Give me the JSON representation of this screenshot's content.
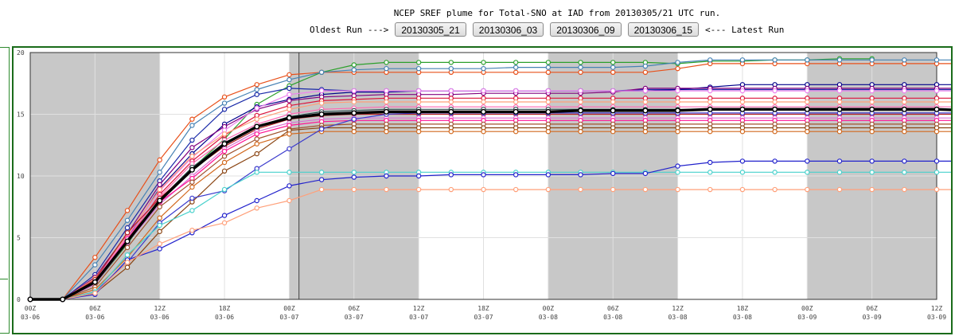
{
  "header": {
    "title": "NCEP SREF plume for Total-SNO at IAD from 20130305/21 UTC run.",
    "oldest_label": "Oldest Run --->",
    "latest_label": "<--- Latest Run",
    "runs": [
      "20130305_21",
      "20130306_03",
      "20130306_09",
      "20130306_15"
    ]
  },
  "colors": {
    "frame": "#1a6b1a",
    "night": "#c8c8c8",
    "mean": "#000000"
  },
  "chart_data": {
    "type": "line",
    "title": "",
    "xlabel": "",
    "ylabel": "",
    "ylim": [
      0,
      20
    ],
    "yticks": [
      0,
      5,
      10,
      15,
      20
    ],
    "grid": true,
    "x": [
      0,
      3,
      6,
      9,
      12,
      15,
      18,
      21,
      24,
      27,
      30,
      33,
      36,
      39,
      42,
      45,
      48,
      51,
      54,
      57,
      60,
      63,
      66,
      69,
      72,
      75,
      78,
      81,
      84,
      87
    ],
    "xticks": [
      {
        "hour": 0,
        "l1": "00Z",
        "l2": "03-06"
      },
      {
        "hour": 6,
        "l1": "06Z",
        "l2": "03-06"
      },
      {
        "hour": 12,
        "l1": "12Z",
        "l2": "03-06"
      },
      {
        "hour": 18,
        "l1": "18Z",
        "l2": "03-06"
      },
      {
        "hour": 24,
        "l1": "00Z",
        "l2": "03-07"
      },
      {
        "hour": 30,
        "l1": "06Z",
        "l2": "03-07"
      },
      {
        "hour": 36,
        "l1": "12Z",
        "l2": "03-07"
      },
      {
        "hour": 42,
        "l1": "18Z",
        "l2": "03-07"
      },
      {
        "hour": 48,
        "l1": "00Z",
        "l2": "03-08"
      },
      {
        "hour": 54,
        "l1": "06Z",
        "l2": "03-08"
      },
      {
        "hour": 60,
        "l1": "12Z",
        "l2": "03-08"
      },
      {
        "hour": 66,
        "l1": "18Z",
        "l2": "03-08"
      },
      {
        "hour": 72,
        "l1": "00Z",
        "l2": "03-09"
      },
      {
        "hour": 78,
        "l1": "06Z",
        "l2": "03-09"
      },
      {
        "hour": 84,
        "l1": "12Z",
        "l2": "03-09"
      }
    ],
    "shaded_hours": [
      [
        0,
        12
      ],
      [
        24,
        36
      ],
      [
        48,
        60
      ],
      [
        72,
        84
      ]
    ],
    "run_marker_hour": 24.9,
    "series": [
      {
        "color": "#2ca02c",
        "values": [
          0,
          0,
          1.2,
          4.5,
          8,
          10.6,
          13,
          15.8,
          17.3,
          18.4,
          19.0,
          19.2,
          19.2,
          19.2,
          19.2,
          19.2,
          19.2,
          19.2,
          19.2,
          19.2,
          19.1,
          19.3,
          19.3,
          19.4,
          19.4,
          19.5,
          19.5,
          null,
          null,
          null
        ]
      },
      {
        "color": "#e8501a",
        "values": [
          0,
          0,
          3.4,
          7.2,
          11.3,
          14.6,
          16.4,
          17.4,
          18.2,
          18.4,
          18.4,
          18.4,
          18.4,
          18.4,
          18.4,
          18.4,
          18.4,
          18.4,
          18.4,
          18.4,
          18.7,
          19.1,
          19.1,
          19.1,
          19.1,
          19.1,
          19.1,
          19.1,
          19.1,
          19.1
        ]
      },
      {
        "color": "#4682b4",
        "values": [
          0,
          0,
          2.8,
          6.4,
          10.3,
          14.1,
          15.9,
          17.0,
          17.8,
          18.4,
          18.6,
          18.7,
          18.7,
          18.7,
          18.7,
          18.8,
          18.8,
          18.8,
          18.8,
          18.9,
          19.2,
          19.4,
          19.4,
          19.4,
          19.4,
          19.4,
          19.4,
          19.4,
          19.4,
          19.4
        ]
      },
      {
        "color": "#1a2aa8",
        "values": [
          0,
          0,
          2.0,
          5.8,
          9.6,
          12.9,
          15.4,
          16.6,
          17.1,
          17.0,
          16.9,
          16.9,
          16.9,
          16.9,
          16.9,
          16.9,
          16.9,
          16.9,
          16.9,
          17.0,
          17.0,
          17.0,
          17.0,
          17.0,
          17.0,
          17.0,
          17.0,
          17.0,
          17.0,
          17.0
        ]
      },
      {
        "color": "#00008b",
        "values": [
          0,
          0,
          1.5,
          5.0,
          9.0,
          11.8,
          14.2,
          15.6,
          16.2,
          16.6,
          16.8,
          16.8,
          16.9,
          16.9,
          16.9,
          16.9,
          16.9,
          16.9,
          16.9,
          16.9,
          17.0,
          17.2,
          17.4,
          17.4,
          17.4,
          17.4,
          17.4,
          17.4,
          17.4,
          17.4
        ]
      },
      {
        "color": "#800080",
        "values": [
          0,
          0,
          1.8,
          5.3,
          9.3,
          12.3,
          14.0,
          15.4,
          16.1,
          16.4,
          16.5,
          16.6,
          16.6,
          16.6,
          16.7,
          16.7,
          16.7,
          16.7,
          16.8,
          17.1,
          17.1,
          17.1,
          17.1,
          17.1,
          17.1,
          17.1,
          17.1,
          17.1,
          17.1,
          17.1
        ]
      },
      {
        "color": "#ee82ee",
        "values": [
          0,
          0,
          1.6,
          5.1,
          8.8,
          11.5,
          13.7,
          15.5,
          16.6,
          16.9,
          16.9,
          16.9,
          16.9,
          16.9,
          16.9,
          16.9,
          16.9,
          16.9,
          16.9,
          16.9,
          16.9,
          16.9,
          16.9,
          16.9,
          16.9,
          16.9,
          16.9,
          16.9,
          16.9,
          16.9
        ]
      },
      {
        "color": "#dc143c",
        "values": [
          0,
          0,
          1.4,
          4.8,
          8.5,
          11.2,
          13.3,
          14.9,
          15.7,
          16.1,
          16.2,
          16.3,
          16.3,
          16.3,
          16.3,
          16.3,
          16.3,
          16.3,
          16.3,
          16.3,
          16.3,
          16.3,
          16.3,
          16.3,
          16.3,
          16.3,
          16.3,
          16.3,
          16.3,
          16.3
        ]
      },
      {
        "color": "#ffa07a",
        "values": [
          0,
          0,
          1.7,
          5.2,
          8.9,
          11.6,
          13.4,
          14.6,
          15.4,
          15.9,
          16.0,
          16.0,
          16.0,
          16.0,
          16.0,
          16.0,
          16.0,
          16.0,
          16.0,
          16.0,
          16.0,
          16.0,
          16.0,
          16.0,
          16.0,
          16.0,
          16.0,
          16.0,
          16.0,
          16.0
        ]
      },
      {
        "color": "#ff69b4",
        "values": [
          0,
          0,
          1.5,
          5.0,
          8.3,
          11.0,
          12.9,
          14.2,
          15.0,
          15.4,
          15.5,
          15.6,
          15.6,
          15.6,
          15.6,
          15.6,
          15.6,
          15.6,
          15.6,
          15.6,
          15.6,
          15.6,
          15.6,
          15.6,
          15.6,
          15.6,
          15.6,
          15.6,
          15.6,
          15.6
        ]
      },
      {
        "color": "#2f4f4f",
        "values": [
          0,
          0,
          1.3,
          4.7,
          8.1,
          10.7,
          12.7,
          14.0,
          14.8,
          15.2,
          15.3,
          15.4,
          15.4,
          15.4,
          15.4,
          15.4,
          15.4,
          15.4,
          15.4,
          15.4,
          15.4,
          15.4,
          15.4,
          15.4,
          15.4,
          15.4,
          15.4,
          15.4,
          15.4,
          15.4
        ]
      },
      {
        "color": "#b22222",
        "values": [
          0,
          0,
          1.6,
          5.4,
          8.2,
          10.5,
          12.4,
          13.8,
          14.6,
          14.9,
          15.0,
          15.0,
          15.0,
          15.0,
          15.0,
          15.0,
          15.0,
          15.0,
          15.0,
          15.0,
          15.0,
          15.0,
          15.0,
          15.0,
          15.0,
          15.0,
          15.0,
          15.0,
          15.0,
          15.0
        ]
      },
      {
        "color": "#da70d6",
        "values": [
          0,
          0,
          1.2,
          4.6,
          7.7,
          10.0,
          12.2,
          13.6,
          14.3,
          14.6,
          14.7,
          14.7,
          14.7,
          14.7,
          14.7,
          14.7,
          14.7,
          14.7,
          14.7,
          14.7,
          14.7,
          14.7,
          14.7,
          14.7,
          14.7,
          14.7,
          14.7,
          14.7,
          14.7,
          14.7
        ]
      },
      {
        "color": "#ff1493",
        "values": [
          0,
          0,
          1.4,
          4.9,
          7.9,
          9.8,
          12.0,
          13.4,
          14.1,
          14.4,
          14.5,
          14.5,
          14.5,
          14.5,
          14.5,
          14.5,
          14.5,
          14.5,
          14.5,
          14.5,
          14.5,
          14.5,
          14.5,
          14.5,
          14.5,
          14.5,
          14.5,
          14.5,
          14.5,
          14.5
        ]
      },
      {
        "color": "#a0522d",
        "values": [
          0,
          0,
          1.0,
          4.2,
          7.5,
          9.5,
          11.6,
          13.0,
          13.8,
          14.1,
          14.2,
          14.2,
          14.2,
          14.2,
          14.2,
          14.2,
          14.2,
          14.2,
          14.2,
          14.2,
          14.2,
          14.2,
          14.2,
          14.2,
          14.2,
          14.2,
          14.2,
          14.2,
          14.2,
          14.2
        ]
      },
      {
        "color": "#8b4513",
        "values": [
          0,
          0,
          0.5,
          2.6,
          5.5,
          7.9,
          10.4,
          11.8,
          13.7,
          13.9,
          13.9,
          13.9,
          13.9,
          13.9,
          13.9,
          13.9,
          13.9,
          13.9,
          13.9,
          13.9,
          13.9,
          13.9,
          13.9,
          13.9,
          13.9,
          13.9,
          13.9,
          13.9,
          13.9,
          13.9
        ]
      },
      {
        "color": "#d2691e",
        "values": [
          0,
          0,
          0.8,
          3.4,
          6.6,
          9.1,
          11.1,
          12.6,
          13.4,
          13.6,
          13.6,
          13.6,
          13.6,
          13.6,
          13.6,
          13.6,
          13.6,
          13.6,
          13.6,
          13.6,
          13.6,
          13.6,
          13.6,
          13.6,
          13.6,
          13.6,
          13.6,
          13.6,
          13.6,
          13.6
        ]
      },
      {
        "color": "#3a3acd",
        "values": [
          0,
          0,
          0.6,
          3.0,
          6.2,
          8.2,
          8.8,
          10.6,
          12.2,
          13.8,
          14.6,
          15.0,
          15.1,
          15.1,
          15.1,
          15.1,
          15.1,
          15.1,
          15.1,
          15.1,
          15.1,
          15.1,
          15.1,
          15.1,
          15.1,
          15.1,
          15.1,
          15.1,
          15.1,
          15.1
        ]
      },
      {
        "color": "#48d1cc",
        "values": [
          0,
          0,
          0.6,
          3.6,
          6.0,
          7.2,
          8.9,
          10.3,
          10.3,
          10.3,
          10.3,
          10.3,
          10.3,
          10.3,
          10.3,
          10.3,
          10.3,
          10.3,
          10.3,
          10.3,
          10.3,
          10.3,
          10.3,
          10.3,
          10.3,
          10.3,
          10.3,
          10.3,
          10.3,
          10.3
        ]
      },
      {
        "color": "#2222cc",
        "values": [
          0,
          0,
          0.4,
          3.2,
          4.1,
          5.4,
          6.8,
          8.0,
          9.2,
          9.7,
          9.9,
          10.0,
          10.0,
          10.1,
          10.1,
          10.1,
          10.1,
          10.1,
          10.2,
          10.2,
          10.8,
          11.1,
          11.2,
          11.2,
          11.2,
          11.2,
          11.2,
          11.2,
          11.2,
          11.2
        ]
      },
      {
        "color": "#ffa07a",
        "values": [
          0,
          0,
          0.5,
          3.0,
          4.5,
          5.6,
          6.2,
          7.4,
          8.0,
          8.9,
          8.9,
          8.9,
          8.9,
          8.9,
          8.9,
          8.9,
          8.9,
          8.9,
          8.9,
          8.9,
          8.9,
          8.9,
          8.9,
          8.9,
          8.9,
          8.9,
          8.9,
          8.9,
          8.9,
          8.9
        ]
      }
    ],
    "mean": [
      0,
      0,
      1.4,
      4.7,
      8.0,
      10.5,
      12.6,
      14.0,
      14.7,
      15.0,
      15.1,
      15.2,
      15.2,
      15.2,
      15.2,
      15.2,
      15.2,
      15.3,
      15.3,
      15.3,
      15.3,
      15.4,
      15.4,
      15.4,
      15.4,
      15.4,
      15.4,
      15.4,
      15.4,
      15.3
    ]
  }
}
